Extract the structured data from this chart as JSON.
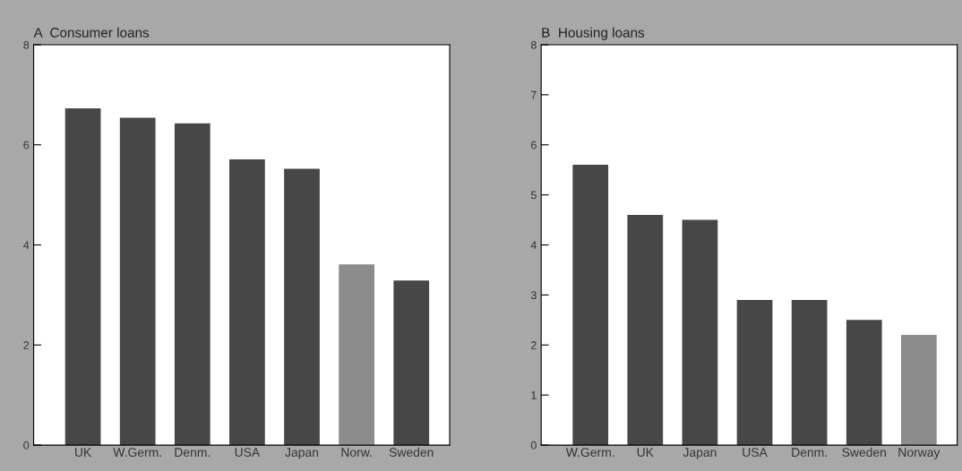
{
  "chart_data": [
    {
      "type": "bar",
      "title": "A  Consumer loans",
      "categories": [
        "UK",
        "W.Germ.",
        "Denm.",
        "USA",
        "Japan",
        "Norw.",
        "Sweden"
      ],
      "values": [
        6.73,
        6.54,
        6.43,
        5.71,
        5.52,
        3.61,
        3.29
      ],
      "colors": [
        "#474747",
        "#474747",
        "#474747",
        "#474747",
        "#474747",
        "#8c8c8c",
        "#474747"
      ],
      "ylim": [
        0,
        8
      ],
      "yticks": [
        0,
        2,
        4,
        6,
        8
      ],
      "grid": false
    },
    {
      "type": "bar",
      "title": "B  Housing loans",
      "categories": [
        "W.Germ.",
        "UK",
        "Japan",
        "USA",
        "Denm.",
        "Sweden",
        "Norway"
      ],
      "values": [
        5.6,
        4.6,
        4.5,
        2.9,
        2.9,
        2.5,
        2.2
      ],
      "colors": [
        "#474747",
        "#474747",
        "#474747",
        "#474747",
        "#474747",
        "#474747",
        "#8c8c8c"
      ],
      "ylim": [
        0,
        8
      ],
      "yticks": [
        0,
        1,
        2,
        3,
        4,
        5,
        6,
        7,
        8
      ],
      "grid": false
    }
  ]
}
